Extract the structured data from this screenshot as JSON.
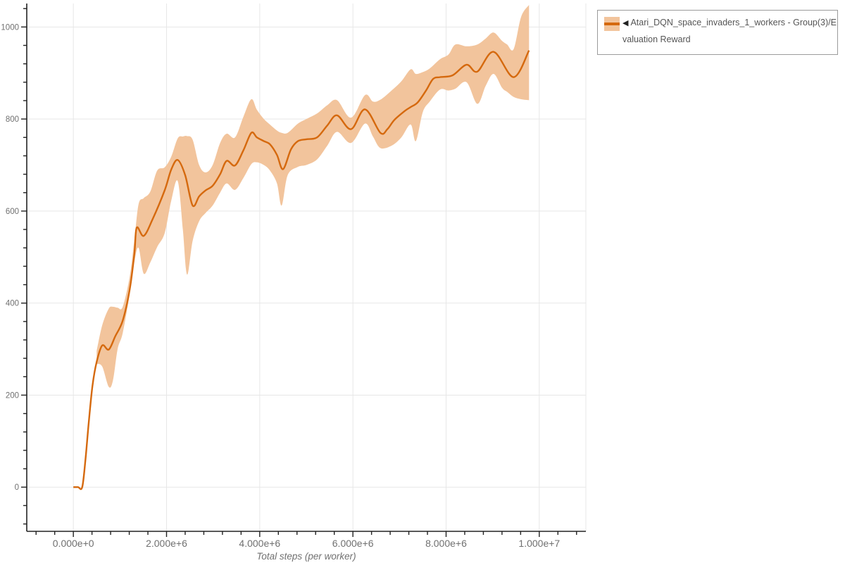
{
  "page": {
    "background": "#ffffff"
  },
  "legend": {
    "border_color": "#9b9b9b",
    "text_color": "#555555",
    "items": [
      {
        "marker_glyph": "◀",
        "label": "Atari_DQN_space_invaders_1_workers - Group(3)/Evaluation Reward"
      }
    ]
  },
  "chart_data": {
    "type": "line",
    "title": "",
    "xlabel": "Total steps (per worker)",
    "ylabel": "",
    "xlim": [
      -1000000,
      11000000
    ],
    "ylim": [
      -96,
      1051
    ],
    "x_major_ticks": [
      0,
      2000000,
      4000000,
      6000000,
      8000000,
      10000000
    ],
    "x_tick_labels": [
      "0.000e+0",
      "2.000e+6",
      "4.000e+6",
      "6.000e+6",
      "8.000e+6",
      "1.000e+7"
    ],
    "x_minor_tick_step": 400000,
    "y_major_ticks": [
      0,
      200,
      400,
      600,
      800,
      1000
    ],
    "y_tick_labels": [
      "0",
      "200",
      "400",
      "600",
      "800",
      "1000"
    ],
    "y_minor_tick_step": 40,
    "grid": true,
    "grid_color": "#e7e7e7",
    "axis_color": "#222222",
    "tick_label_color": "#707070",
    "axis_title_color": "#707070",
    "legend_position": "top-right",
    "series": [
      {
        "name": "Atari_DQN_space_invaders_1_workers - Group(3)/Evaluation Reward",
        "color": "#d5690e",
        "band_color": "#f2c49c",
        "points": [
          [
            0,
            0
          ],
          [
            100000,
            0
          ],
          [
            190000,
            0
          ],
          [
            260000,
            60
          ],
          [
            330000,
            140
          ],
          [
            410000,
            220
          ],
          [
            500000,
            272
          ],
          [
            620000,
            308
          ],
          [
            760000,
            299
          ],
          [
            900000,
            328
          ],
          [
            1060000,
            362
          ],
          [
            1210000,
            430
          ],
          [
            1310000,
            508
          ],
          [
            1360000,
            564
          ],
          [
            1510000,
            546
          ],
          [
            1700000,
            582
          ],
          [
            1960000,
            645
          ],
          [
            2100000,
            690
          ],
          [
            2240000,
            711
          ],
          [
            2400000,
            678
          ],
          [
            2560000,
            612
          ],
          [
            2700000,
            632
          ],
          [
            2840000,
            645
          ],
          [
            2990000,
            655
          ],
          [
            3150000,
            680
          ],
          [
            3290000,
            709
          ],
          [
            3470000,
            699
          ],
          [
            3650000,
            732
          ],
          [
            3820000,
            770
          ],
          [
            3940000,
            760
          ],
          [
            4090000,
            752
          ],
          [
            4220000,
            745
          ],
          [
            4370000,
            722
          ],
          [
            4500000,
            691
          ],
          [
            4670000,
            734
          ],
          [
            4820000,
            752
          ],
          [
            5000000,
            756
          ],
          [
            5230000,
            760
          ],
          [
            5450000,
            786
          ],
          [
            5660000,
            808
          ],
          [
            5960000,
            778
          ],
          [
            6260000,
            821
          ],
          [
            6590000,
            770
          ],
          [
            6740000,
            778
          ],
          [
            6890000,
            798
          ],
          [
            7120000,
            818
          ],
          [
            7240000,
            826
          ],
          [
            7390000,
            836
          ],
          [
            7570000,
            862
          ],
          [
            7720000,
            887
          ],
          [
            7870000,
            891
          ],
          [
            8140000,
            895
          ],
          [
            8440000,
            918
          ],
          [
            8670000,
            903
          ],
          [
            9020000,
            946
          ],
          [
            9450000,
            891
          ],
          [
            9780000,
            949
          ]
        ],
        "band": [
          [
            500000,
            268,
            296
          ],
          [
            620000,
            262,
            352
          ],
          [
            760000,
            218,
            388
          ],
          [
            850000,
            232,
            392
          ],
          [
            950000,
            300,
            390
          ],
          [
            1060000,
            335,
            392
          ],
          [
            1210000,
            420,
            458
          ],
          [
            1310000,
            490,
            538
          ],
          [
            1400000,
            520,
            615
          ],
          [
            1510000,
            464,
            628
          ],
          [
            1650000,
            488,
            642
          ],
          [
            1800000,
            522,
            688
          ],
          [
            1960000,
            552,
            695
          ],
          [
            2100000,
            622,
            718
          ],
          [
            2240000,
            665,
            758
          ],
          [
            2350000,
            560,
            762
          ],
          [
            2440000,
            462,
            763
          ],
          [
            2560000,
            535,
            755
          ],
          [
            2700000,
            578,
            700
          ],
          [
            2840000,
            596,
            684
          ],
          [
            2990000,
            612,
            700
          ],
          [
            3150000,
            640,
            748
          ],
          [
            3290000,
            660,
            768
          ],
          [
            3470000,
            646,
            760
          ],
          [
            3650000,
            672,
            805
          ],
          [
            3820000,
            702,
            843
          ],
          [
            3940000,
            706,
            820
          ],
          [
            4090000,
            700,
            800
          ],
          [
            4220000,
            688,
            788
          ],
          [
            4370000,
            660,
            775
          ],
          [
            4470000,
            612,
            770
          ],
          [
            4600000,
            678,
            770
          ],
          [
            4820000,
            696,
            790
          ],
          [
            5000000,
            700,
            800
          ],
          [
            5230000,
            712,
            812
          ],
          [
            5450000,
            742,
            830
          ],
          [
            5660000,
            772,
            841
          ],
          [
            5960000,
            748,
            803
          ],
          [
            6260000,
            790,
            852
          ],
          [
            6430000,
            762,
            838
          ],
          [
            6590000,
            737,
            842
          ],
          [
            6830000,
            742,
            862
          ],
          [
            7040000,
            760,
            882
          ],
          [
            7240000,
            788,
            908
          ],
          [
            7350000,
            752,
            898
          ],
          [
            7500000,
            815,
            902
          ],
          [
            7650000,
            838,
            910
          ],
          [
            7870000,
            864,
            930
          ],
          [
            8050000,
            862,
            940
          ],
          [
            8200000,
            866,
            962
          ],
          [
            8440000,
            880,
            958
          ],
          [
            8670000,
            833,
            962
          ],
          [
            8850000,
            872,
            975
          ],
          [
            9020000,
            898,
            988
          ],
          [
            9200000,
            868,
            970
          ],
          [
            9310000,
            859,
            962
          ],
          [
            9450000,
            848,
            952
          ],
          [
            9610000,
            843,
            1022
          ],
          [
            9780000,
            841,
            1048
          ]
        ]
      }
    ]
  }
}
